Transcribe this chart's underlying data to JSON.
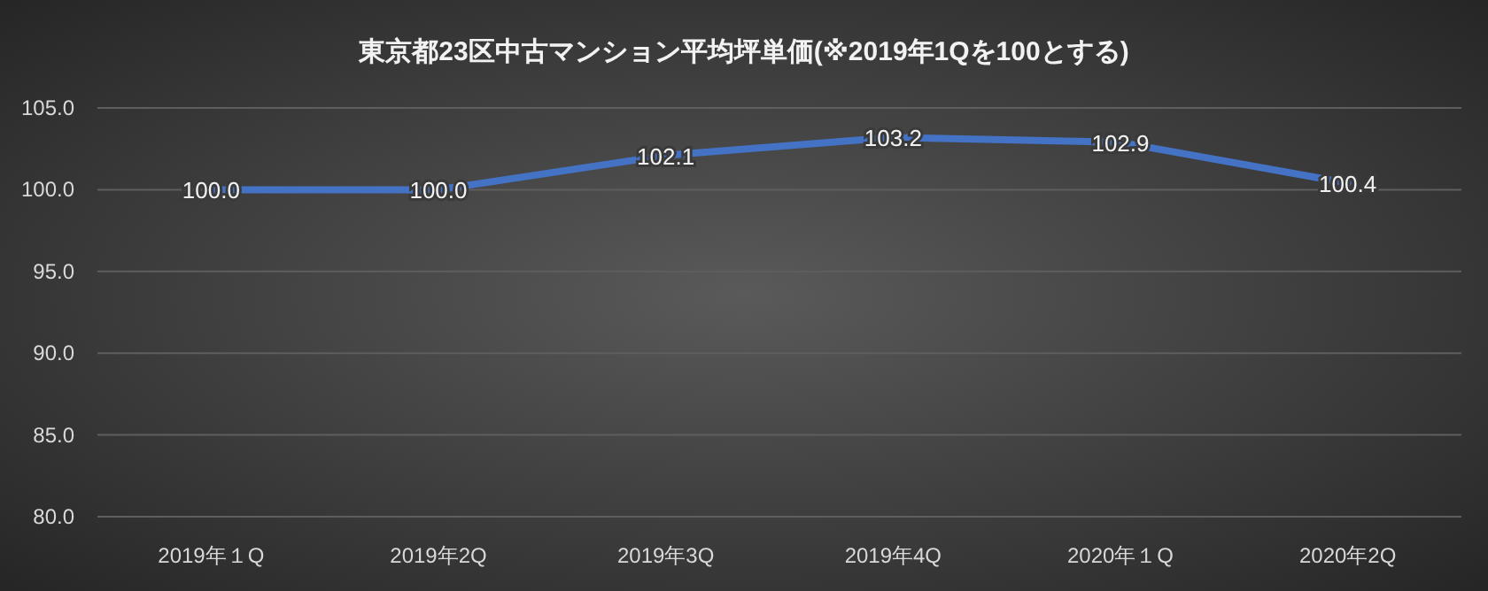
{
  "chart_data": {
    "type": "line",
    "title": "東京都23区中古マンション平均坪単価(※2019年1Qを100とする)",
    "categories": [
      "2019年１Q",
      "2019年2Q",
      "2019年3Q",
      "2019年4Q",
      "2020年１Q",
      "2020年2Q"
    ],
    "series": [
      {
        "color": "#4472c4",
        "values": [
          100.0,
          100.0,
          102.1,
          103.2,
          102.9,
          100.4
        ],
        "value_labels": [
          "100.0",
          "100.0",
          "102.1",
          "103.2",
          "102.9",
          "100.4"
        ]
      }
    ],
    "ylim": [
      80,
      105
    ],
    "yticks": [
      {
        "value": 80,
        "label": "80.0"
      },
      {
        "value": 85,
        "label": "85.0"
      },
      {
        "value": 90,
        "label": "90.0"
      },
      {
        "value": 95,
        "label": "95.0"
      },
      {
        "value": 100,
        "label": "100.0"
      },
      {
        "value": 105,
        "label": "105.0"
      }
    ],
    "grid": "y",
    "marker": "none",
    "line_style": "solid"
  }
}
